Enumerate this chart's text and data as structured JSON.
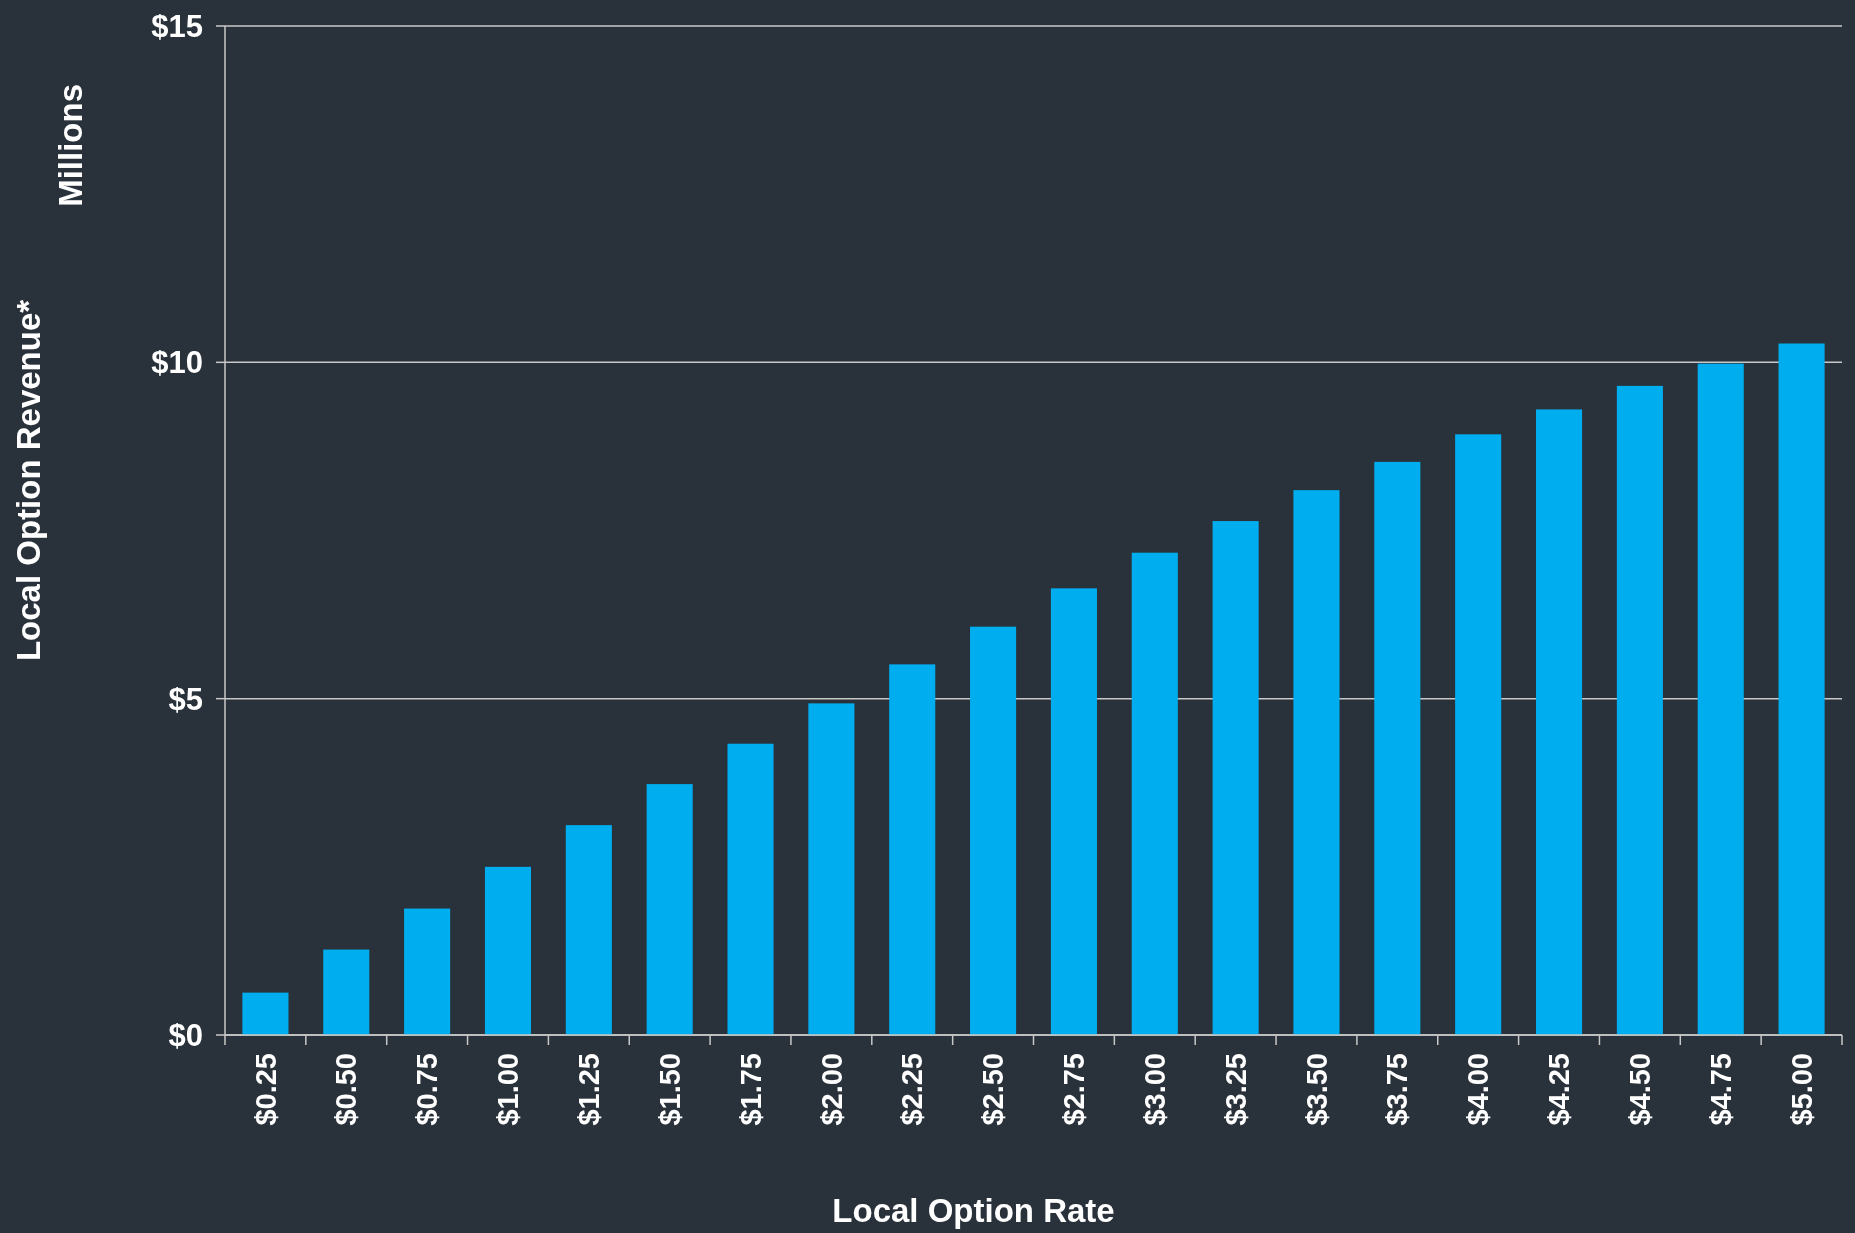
{
  "chart_data": {
    "type": "bar",
    "xlabel": "Local Option Rate",
    "ylabel": "Local Option Revenue*",
    "annotations": [
      "Millions"
    ],
    "categories": [
      "$0.25",
      "$0.50",
      "$0.75",
      "$1.00",
      "$1.25",
      "$1.50",
      "$1.75",
      "$2.00",
      "$2.25",
      "$2.50",
      "$2.75",
      "$3.00",
      "$3.25",
      "$3.50",
      "$3.75",
      "$4.00",
      "$4.25",
      "$4.50",
      "$4.75",
      "$5.00"
    ],
    "values": [
      0.63,
      1.27,
      1.88,
      2.5,
      3.12,
      3.73,
      4.33,
      4.93,
      5.51,
      6.07,
      6.64,
      7.17,
      7.64,
      8.1,
      8.52,
      8.93,
      9.3,
      9.65,
      9.98,
      10.28
    ],
    "color": "#00aeef",
    "ylim": [
      0,
      15
    ],
    "yticks": [
      {
        "value": 0,
        "label": "$0"
      },
      {
        "value": 5,
        "label": "$5"
      },
      {
        "value": 10,
        "label": "$10"
      },
      {
        "value": 15,
        "label": "$15"
      }
    ],
    "grid": "y"
  }
}
